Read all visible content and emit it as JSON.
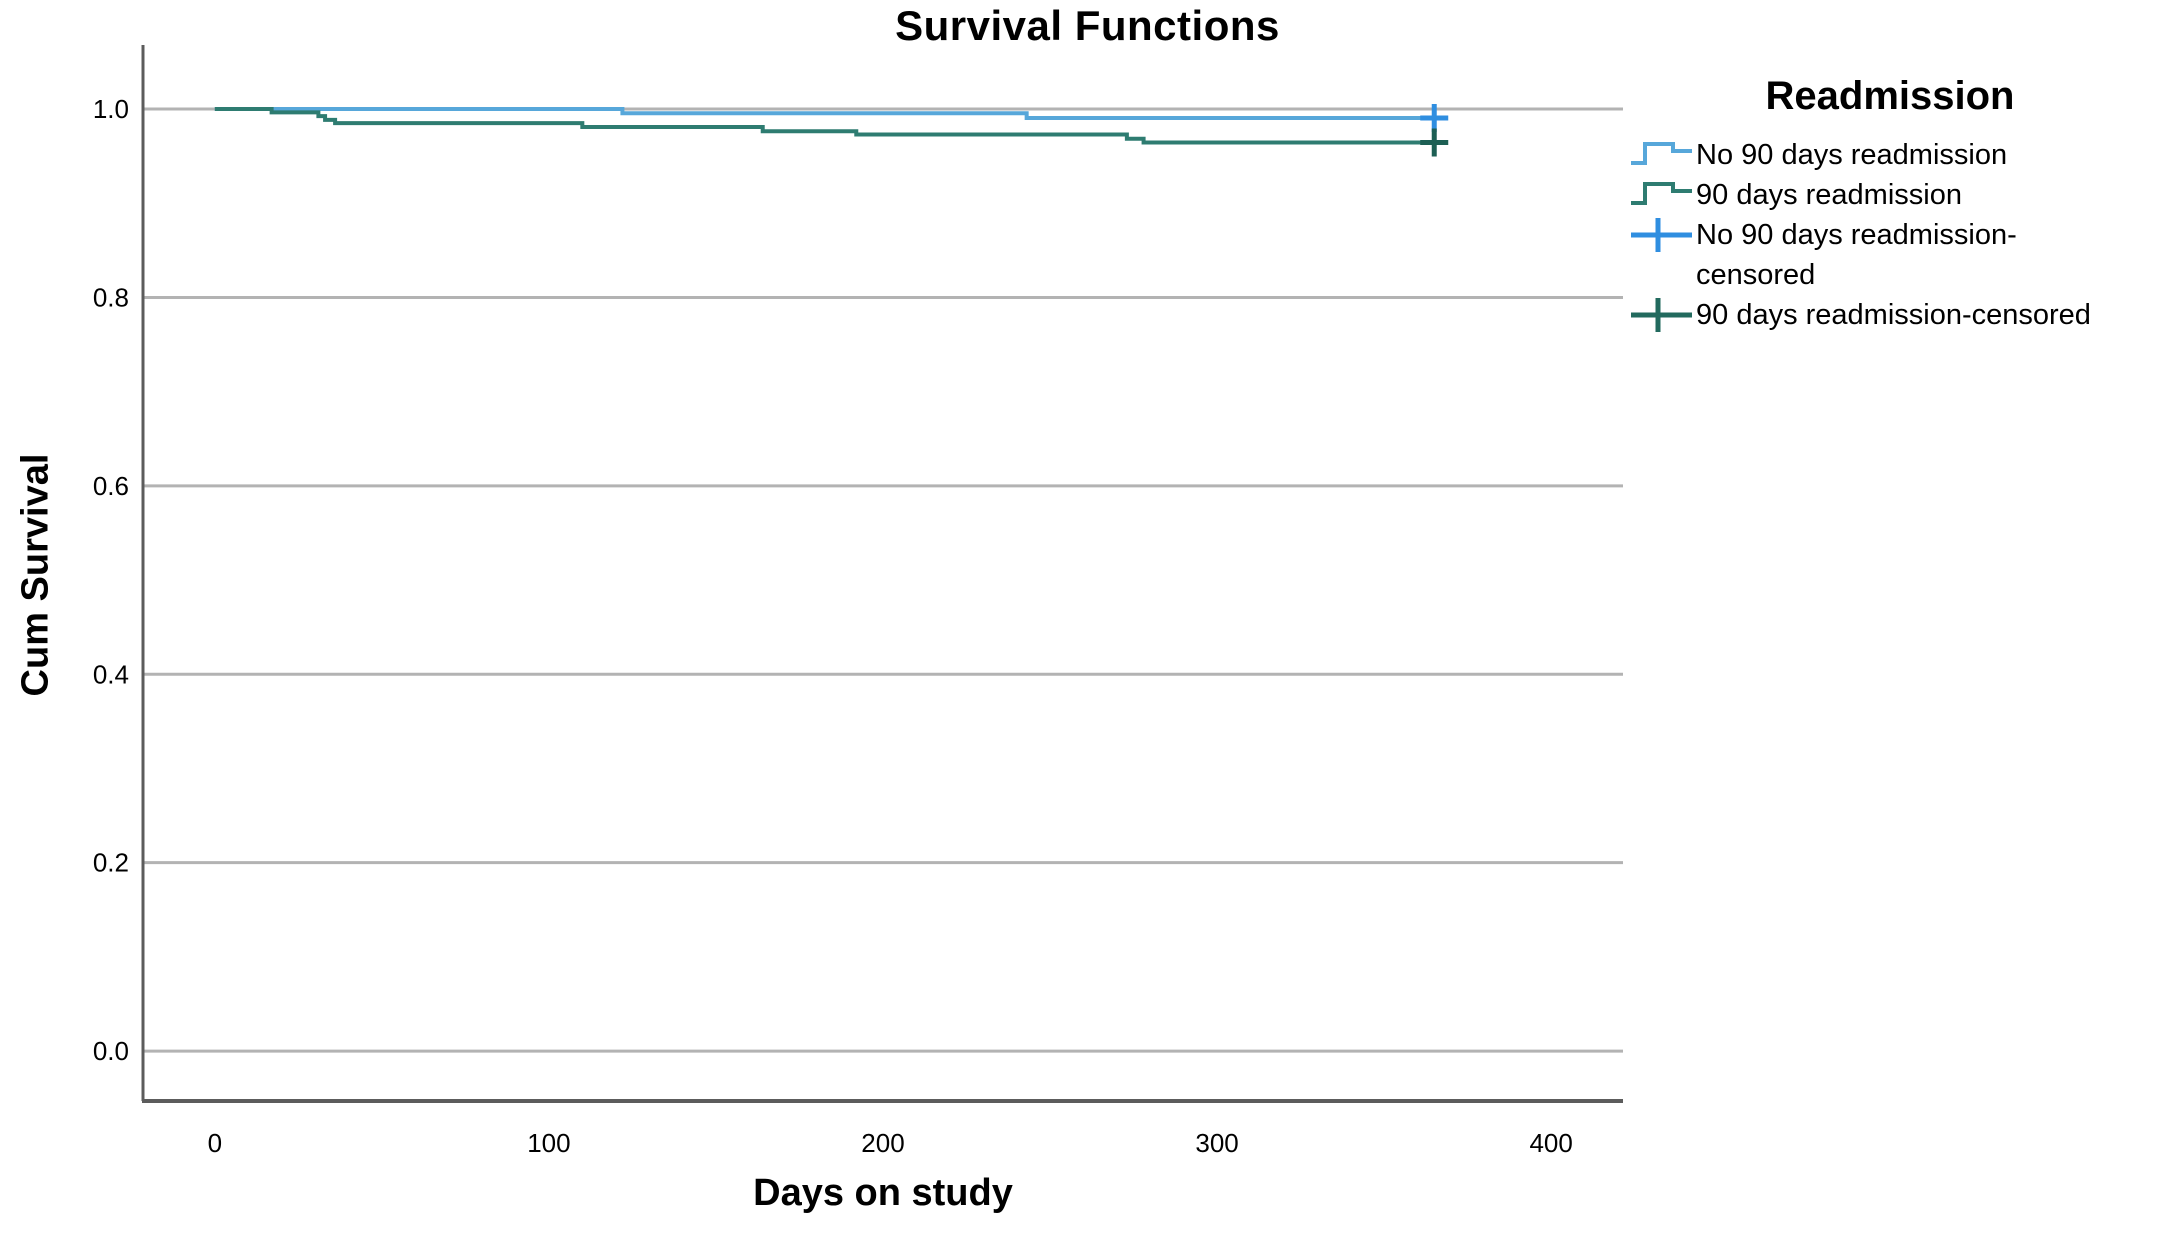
{
  "chart_data": {
    "type": "line",
    "subtype": "kaplan-meier-step",
    "title": "Survival Functions",
    "xlabel": "Days on study",
    "ylabel": "Cum Survival",
    "xlim": [
      -21.5,
      421.5
    ],
    "ylim": [
      -0.053,
      1.068
    ],
    "x_ticks": [
      0,
      100,
      200,
      300,
      400
    ],
    "y_ticks": [
      0.0,
      0.2,
      0.4,
      0.6,
      0.8,
      1.0
    ],
    "grid": "horizontal",
    "legend": {
      "title": "Readmission",
      "position": "right",
      "items": [
        {
          "label": "No 90 days readmission",
          "symbol": "step-line",
          "color": "#57a7da"
        },
        {
          "label": "90 days readmission",
          "symbol": "step-line",
          "color": "#2e7c71"
        },
        {
          "label": "No 90 days readmission-\ncensored",
          "symbol": "plus",
          "color": "#2f8ee0"
        },
        {
          "label": "90 days readmission-censored",
          "symbol": "plus",
          "color": "#226a5e"
        }
      ]
    },
    "series": [
      {
        "name": "No 90 days readmission",
        "color": "#57a7da",
        "points": [
          [
            0,
            1.0
          ],
          [
            122,
            0.9955
          ],
          [
            243,
            0.9905
          ],
          [
            365,
            0.9905
          ]
        ]
      },
      {
        "name": "90 days readmission",
        "color": "#2e7c71",
        "points": [
          [
            0,
            1.0
          ],
          [
            17,
            0.9965
          ],
          [
            31,
            0.9925
          ],
          [
            33,
            0.9885
          ],
          [
            36,
            0.985
          ],
          [
            110,
            0.981
          ],
          [
            164,
            0.9765
          ],
          [
            192,
            0.973
          ],
          [
            273,
            0.9685
          ],
          [
            278,
            0.9645
          ],
          [
            365,
            0.9645
          ]
        ]
      }
    ],
    "censored_markers": [
      {
        "series": "No 90 days readmission",
        "x": 365,
        "y": 0.9905,
        "color": "#2f8ee0"
      },
      {
        "series": "90 days readmission",
        "x": 365,
        "y": 0.9645,
        "color": "#1d5f54"
      }
    ]
  }
}
